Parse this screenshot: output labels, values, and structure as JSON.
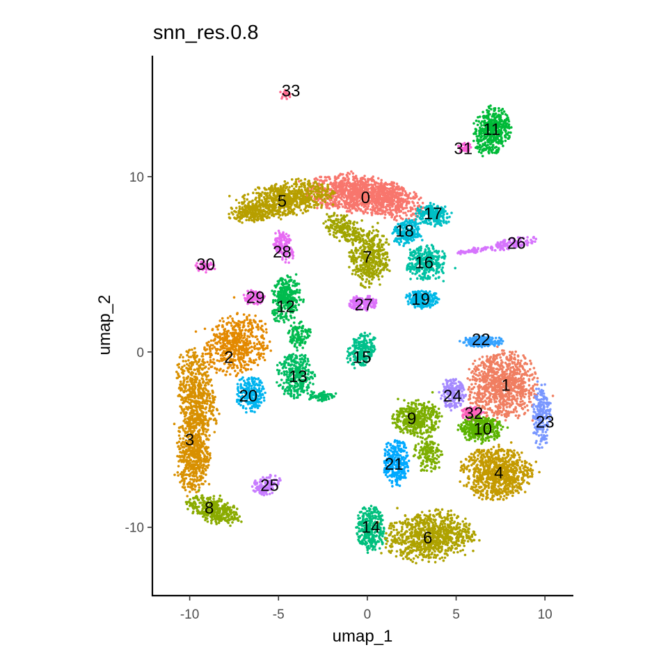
{
  "chart_data": {
    "type": "scatter",
    "title": "snn_res.0.8",
    "xlabel": "umap_1",
    "ylabel": "umap_2",
    "xlim": [
      -12.1,
      11.6
    ],
    "ylim": [
      -13.9,
      16.9
    ],
    "xticks": [
      -10,
      -5,
      0,
      5,
      10
    ],
    "yticks": [
      -10,
      0,
      10
    ],
    "xtick_labels": [
      "-10",
      "-5",
      "0",
      "5",
      "10"
    ],
    "ytick_labels": [
      "-10",
      "0",
      "10"
    ],
    "grid": false,
    "legend": "none",
    "clusters": [
      {
        "label": "0",
        "x": -0.1,
        "y": 8.8,
        "color": "#F8766D"
      },
      {
        "label": "1",
        "x": 7.8,
        "y": -1.9,
        "color": "#F07E61"
      },
      {
        "label": "2",
        "x": -7.8,
        "y": -0.3,
        "color": "#E38900"
      },
      {
        "label": "3",
        "x": -9.9,
        "y": -5.0,
        "color": "#D89000"
      },
      {
        "label": "4",
        "x": 7.4,
        "y": -6.9,
        "color": "#C49A00"
      },
      {
        "label": "5",
        "x": -4.8,
        "y": 8.7,
        "color": "#B79F00"
      },
      {
        "label": "6",
        "x": 3.4,
        "y": -10.6,
        "color": "#AEA200"
      },
      {
        "label": "7",
        "x": 0.0,
        "y": 5.4,
        "color": "#A0A400"
      },
      {
        "label": "8",
        "x": -8.8,
        "y": -8.9,
        "color": "#8AAB00"
      },
      {
        "label": "9",
        "x": 2.5,
        "y": -3.8,
        "color": "#7CAE00"
      },
      {
        "label": "10",
        "x": 6.5,
        "y": -4.4,
        "color": "#5BB300"
      },
      {
        "label": "11",
        "x": 7.0,
        "y": 12.7,
        "color": "#00BA38"
      },
      {
        "label": "12",
        "x": -4.5,
        "y": 2.8,
        "color": "#00BB4E"
      },
      {
        "label": "13",
        "x": -3.9,
        "y": -1.4,
        "color": "#00BC62"
      },
      {
        "label": "14",
        "x": 0.1,
        "y": -9.9,
        "color": "#00BF7D"
      },
      {
        "label": "15",
        "x": -0.3,
        "y": 0.0,
        "color": "#00C08B"
      },
      {
        "label": "16",
        "x": 3.4,
        "y": 5.1,
        "color": "#00C1A3"
      },
      {
        "label": "17",
        "x": 3.7,
        "y": 7.9,
        "color": "#00BFC4"
      },
      {
        "label": "18",
        "x": 2.2,
        "y": 6.9,
        "color": "#00BCD8"
      },
      {
        "label": "19",
        "x": 3.3,
        "y": 3.0,
        "color": "#00B8E7"
      },
      {
        "label": "20",
        "x": -6.5,
        "y": -2.5,
        "color": "#00B4EF"
      },
      {
        "label": "21",
        "x": 1.3,
        "y": -6.3,
        "color": "#00A9FF"
      },
      {
        "label": "22",
        "x": 6.5,
        "y": 0.6,
        "color": "#35A2FF"
      },
      {
        "label": "23",
        "x": 9.8,
        "y": -4.1,
        "color": "#7997FF"
      },
      {
        "label": "24",
        "x": 4.8,
        "y": -2.5,
        "color": "#A58AFF"
      },
      {
        "label": "25",
        "x": -5.9,
        "y": -7.6,
        "color": "#C77CFF"
      },
      {
        "label": "26",
        "x": 8.5,
        "y": 6.2,
        "color": "#D674FD"
      },
      {
        "label": "27",
        "x": -0.1,
        "y": 2.6,
        "color": "#DC71FA"
      },
      {
        "label": "28",
        "x": -4.7,
        "y": 5.8,
        "color": "#E76BF3"
      },
      {
        "label": "29",
        "x": -6.3,
        "y": 3.1,
        "color": "#F066EA"
      },
      {
        "label": "30",
        "x": -9.3,
        "y": 5.0,
        "color": "#F564E3"
      },
      {
        "label": "31",
        "x": 5.8,
        "y": 11.6,
        "color": "#FB61D7"
      },
      {
        "label": "32",
        "x": 5.9,
        "y": -3.5,
        "color": "#FF62BC"
      },
      {
        "label": "33",
        "x": -4.6,
        "y": 14.8,
        "color": "#FF6C91"
      }
    ],
    "label_positions": [
      {
        "label": "0",
        "x": -0.1,
        "y": 8.8
      },
      {
        "label": "1",
        "x": 7.8,
        "y": -1.9
      },
      {
        "label": "2",
        "x": -7.8,
        "y": -0.3
      },
      {
        "label": "3",
        "x": -10.0,
        "y": -5.0
      },
      {
        "label": "4",
        "x": 7.4,
        "y": -6.9
      },
      {
        "label": "5",
        "x": -4.8,
        "y": 8.6
      },
      {
        "label": "6",
        "x": 3.4,
        "y": -10.6
      },
      {
        "label": "7",
        "x": 0.0,
        "y": 5.4
      },
      {
        "label": "8",
        "x": -8.9,
        "y": -8.9
      },
      {
        "label": "9",
        "x": 2.5,
        "y": -3.8
      },
      {
        "label": "10",
        "x": 6.5,
        "y": -4.4
      },
      {
        "label": "11",
        "x": 7.0,
        "y": 12.7
      },
      {
        "label": "12",
        "x": -4.6,
        "y": 2.6
      },
      {
        "label": "13",
        "x": -3.9,
        "y": -1.4
      },
      {
        "label": "14",
        "x": 0.2,
        "y": -10.0
      },
      {
        "label": "15",
        "x": -0.3,
        "y": -0.3
      },
      {
        "label": "16",
        "x": 3.2,
        "y": 5.1
      },
      {
        "label": "17",
        "x": 3.7,
        "y": 7.9
      },
      {
        "label": "18",
        "x": 2.1,
        "y": 6.9
      },
      {
        "label": "19",
        "x": 3.0,
        "y": 3.0
      },
      {
        "label": "20",
        "x": -6.7,
        "y": -2.5
      },
      {
        "label": "21",
        "x": 1.5,
        "y": -6.4
      },
      {
        "label": "22",
        "x": 6.4,
        "y": 0.7
      },
      {
        "label": "23",
        "x": 10.0,
        "y": -4.0
      },
      {
        "label": "24",
        "x": 4.8,
        "y": -2.5
      },
      {
        "label": "25",
        "x": -5.5,
        "y": -7.6
      },
      {
        "label": "26",
        "x": 8.4,
        "y": 6.2
      },
      {
        "label": "27",
        "x": -0.2,
        "y": 2.7
      },
      {
        "label": "28",
        "x": -4.8,
        "y": 5.7
      },
      {
        "label": "29",
        "x": -6.3,
        "y": 3.1
      },
      {
        "label": "30",
        "x": -9.1,
        "y": 5.0
      },
      {
        "label": "31",
        "x": 5.4,
        "y": 11.6
      },
      {
        "label": "32",
        "x": 6.0,
        "y": -3.5
      },
      {
        "label": "33",
        "x": -4.3,
        "y": 14.9
      }
    ]
  }
}
